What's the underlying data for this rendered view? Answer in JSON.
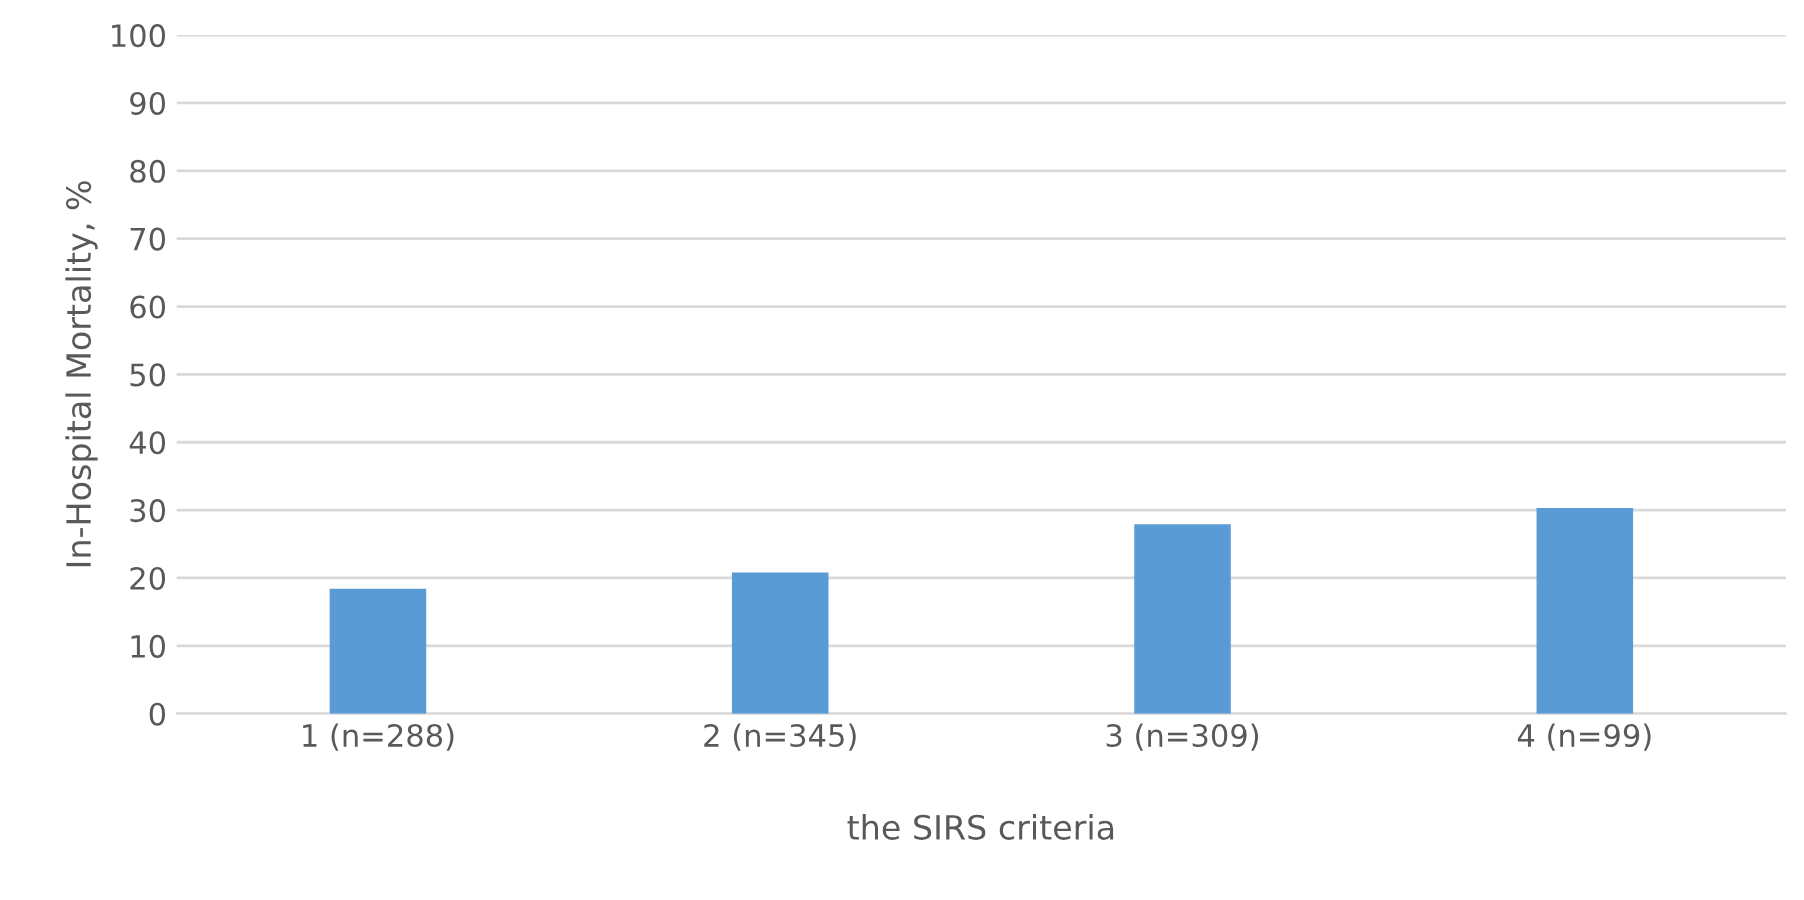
{
  "chart_data": {
    "type": "bar",
    "xlabel": "the SIRS criteria",
    "ylabel": "In-Hospital Mortality, %",
    "categories": [
      "1 (n=288)",
      "2 (n=345)",
      "3 (n=309)",
      "4 (n=99)"
    ],
    "values": [
      18.4,
      20.8,
      27.9,
      30.3
    ],
    "color": "#5b9bd5",
    "ylim": [
      0,
      100
    ],
    "yticks": [
      0,
      10,
      20,
      30,
      40,
      50,
      60,
      70,
      80,
      90,
      100
    ],
    "grid": "y"
  }
}
